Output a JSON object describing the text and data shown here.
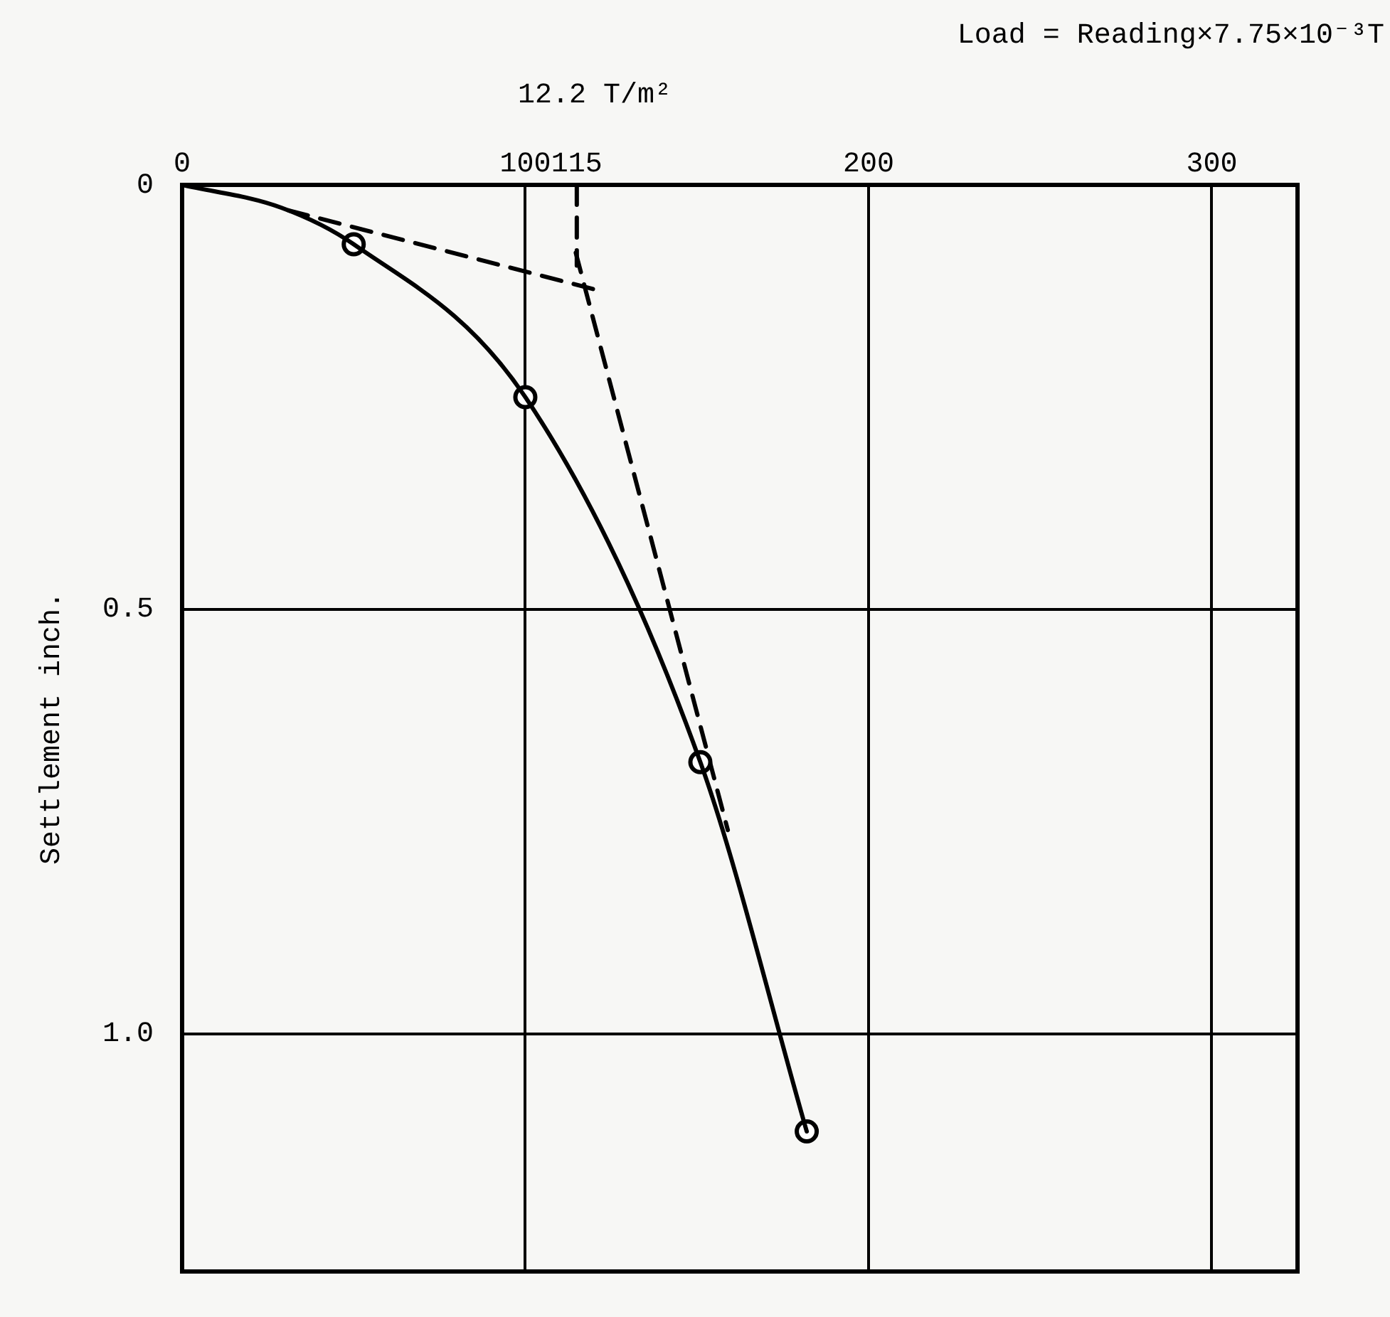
{
  "chart_data": {
    "type": "line",
    "ylabel": "Settlement inch.",
    "annotations": [
      "Load = Reading×7.75×10⁻³T",
      "12.2 T/m²"
    ],
    "xlim": [
      0,
      325
    ],
    "xticks": [
      0,
      100,
      {
        "value": 115,
        "label": "115"
      },
      200,
      300
    ],
    "ylim": [
      1.28,
      0
    ],
    "yticks": [
      0,
      0.5,
      {
        "value": 1,
        "label": "1.0"
      }
    ],
    "grid": true,
    "series": [
      {
        "color": "#000000",
        "marker": "none",
        "line_style": "solid",
        "x": [
          0,
          29,
          50,
          100,
          151,
          182
        ],
        "values": [
          0,
          0.027,
          0.07,
          0.25,
          0.68,
          1.115
        ]
      },
      {
        "type": "scatter",
        "color": "#000000",
        "marker": "circle",
        "x": [
          50,
          100,
          151,
          182
        ],
        "values": [
          0.07,
          0.25,
          0.68,
          1.115
        ]
      },
      {
        "type": "line",
        "color": "#000000",
        "marker": "none",
        "line_style": "dashed",
        "x": [
          31,
          121
        ],
        "values": [
          0.03,
          0.124
        ]
      },
      {
        "type": "line",
        "color": "#000000",
        "marker": "none",
        "line_style": "dashed",
        "x": [
          115,
          115
        ],
        "values": [
          0,
          0.095
        ]
      },
      {
        "type": "line",
        "color": "#000000",
        "marker": "none",
        "line_style": "dashed",
        "x": [
          114.7,
          159
        ],
        "values": [
          0.08,
          0.76
        ]
      }
    ]
  }
}
